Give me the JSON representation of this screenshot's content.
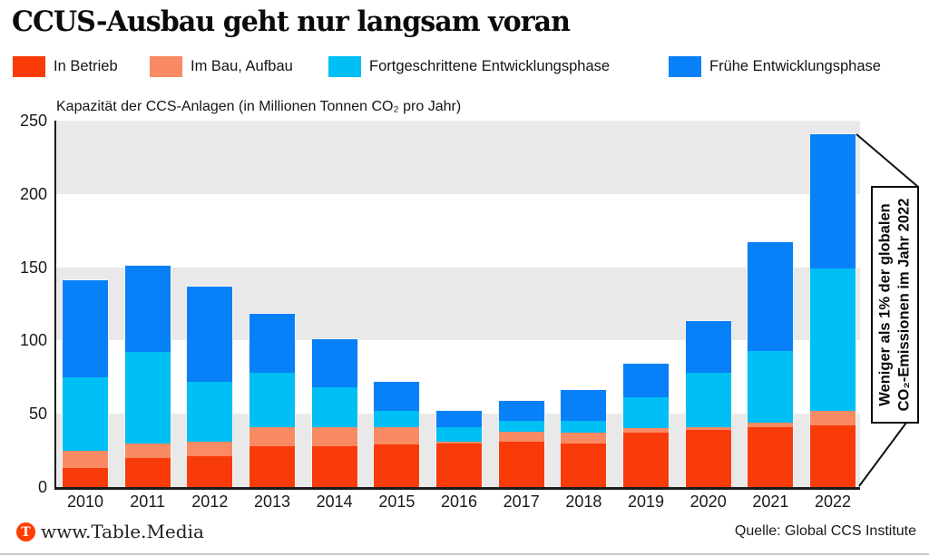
{
  "title": "CCUS-Ausbau geht nur langsam voran",
  "legend": [
    {
      "label": "In Betrieb",
      "color": "#f93b0a"
    },
    {
      "label": "Im Bau, Aufbau",
      "color": "#f98a63"
    },
    {
      "label": "Fortgeschrittene Entwicklungsphase",
      "color": "#00bff4"
    },
    {
      "label": "Frühe Entwicklungsphase",
      "color": "#0780f8"
    }
  ],
  "chart_data": {
    "type": "bar",
    "stacked": true,
    "subtitle": "Kapazität der CCS-Anlagen (in Millionen Tonnen CO₂ pro Jahr)",
    "categories": [
      "2010",
      "2011",
      "2012",
      "2013",
      "2014",
      "2015",
      "2016",
      "2017",
      "2018",
      "2019",
      "2020",
      "2021",
      "2022"
    ],
    "series": [
      {
        "name": "In Betrieb",
        "color": "#f93b0a",
        "values": [
          13,
          20,
          21,
          28,
          28,
          29,
          30,
          31,
          30,
          37,
          39,
          41,
          42
        ]
      },
      {
        "name": "Im Bau, Aufbau",
        "color": "#f98a63",
        "values": [
          12,
          10,
          10,
          13,
          13,
          12,
          1,
          7,
          7,
          3,
          2,
          3,
          10
        ]
      },
      {
        "name": "Fortgeschrittene Entwicklungsphase",
        "color": "#00bff4",
        "values": [
          50,
          62,
          41,
          37,
          27,
          11,
          10,
          7,
          8,
          21,
          37,
          49,
          97
        ]
      },
      {
        "name": "Frühe Entwicklungsphase",
        "color": "#0780f8",
        "values": [
          66,
          59,
          65,
          40,
          33,
          20,
          11,
          14,
          21,
          23,
          35,
          74,
          92
        ]
      }
    ],
    "totals": [
      141,
      151,
      137,
      118,
      101,
      72,
      52,
      59,
      66,
      84,
      113,
      167,
      241
    ],
    "ylim": [
      0,
      250
    ],
    "yticks": [
      0,
      50,
      100,
      150,
      200,
      250
    ],
    "grid": "alternating horizontal gray bands (0-50, 100-150, 200-250)",
    "band_color": "#e9e9e9",
    "legend_position": "top"
  },
  "annotation": {
    "line1": "Weniger als 1% der globalen",
    "line2": "CO₂-Emissionen im Jahr 2022"
  },
  "footer": {
    "logo_letter": "T",
    "brand": "www.Table.Media",
    "source": "Quelle: Global CCS Institute"
  }
}
